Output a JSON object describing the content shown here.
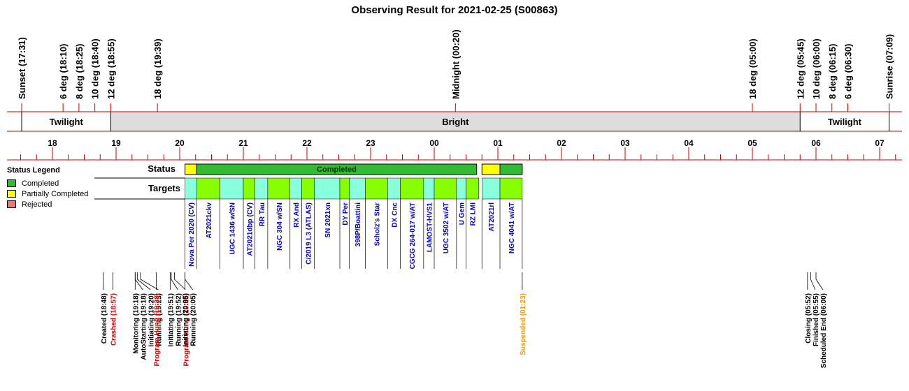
{
  "title": "Observing Result for 2021-02-25 (S00863)",
  "colors": {
    "completed": "#33bb33",
    "partial": "#ffff00",
    "rejected": "#ee7777",
    "twilight_band": "#ffffff",
    "bright_band": "#dddddd",
    "target_green": "#88ff00",
    "target_cyan": "#88ffdd",
    "target_label": "#0000cc",
    "line_red": "#cc0000",
    "event_black": "#000000",
    "event_red": "#dd0000",
    "event_orange": "#ff9900"
  },
  "legend": {
    "title": "Status Legend",
    "items": [
      {
        "label": "Completed",
        "color": "#33bb33"
      },
      {
        "label": "Partially Completed",
        "color": "#ffff00"
      },
      {
        "label": "Rejected",
        "color": "#ee7777"
      }
    ]
  },
  "row_labels": {
    "status": "Status",
    "targets": "Targets"
  },
  "timeline": {
    "start_hour": 17.5,
    "end_hour": 31.25,
    "hour_labels": [
      "18",
      "19",
      "20",
      "21",
      "22",
      "23",
      "00",
      "01",
      "02",
      "03",
      "04",
      "05",
      "06",
      "07"
    ],
    "sun_events": [
      {
        "label": "Sunset (17:31)",
        "time": "17:31"
      },
      {
        "label": "6 deg (18:10)",
        "time": "18:10"
      },
      {
        "label": "8 deg (18:25)",
        "time": "18:25"
      },
      {
        "label": "10 deg (18:40)",
        "time": "18:40"
      },
      {
        "label": "12 deg (18:55)",
        "time": "18:55"
      },
      {
        "label": "18 deg (19:39)",
        "time": "19:39"
      },
      {
        "label": "Midnight (00:20)",
        "time": "00:20"
      },
      {
        "label": "18 deg (05:00)",
        "time": "05:00"
      },
      {
        "label": "12 deg (05:45)",
        "time": "05:45"
      },
      {
        "label": "10 deg (06:00)",
        "time": "06:00"
      },
      {
        "label": "8 deg (06:15)",
        "time": "06:15"
      },
      {
        "label": "6 deg (06:30)",
        "time": "06:30"
      },
      {
        "label": "Sunrise (07:09)",
        "time": "07:09"
      }
    ],
    "bands": [
      {
        "label": "Twilight",
        "start": "17:31",
        "end": "18:55",
        "kind": "twilight"
      },
      {
        "label": "Bright",
        "start": "18:55",
        "end": "05:45",
        "kind": "bright"
      },
      {
        "label": "Twilight",
        "start": "05:45",
        "end": "07:09",
        "kind": "twilight"
      }
    ]
  },
  "status_segments": [
    {
      "start": "20:05",
      "end": "20:16",
      "status": "partial",
      "label": ""
    },
    {
      "start": "20:16",
      "end": "00:40",
      "status": "completed",
      "label": "Completed"
    },
    {
      "start": "00:40",
      "end": "00:45",
      "status": "blank",
      "label": ""
    },
    {
      "start": "00:45",
      "end": "01:02",
      "status": "partial",
      "label": ""
    },
    {
      "start": "01:02",
      "end": "01:23",
      "status": "completed",
      "label": ""
    }
  ],
  "targets": [
    {
      "name": "Nova Per 2020 (CV)",
      "start": "20:05",
      "end": "20:16",
      "color": "cyan"
    },
    {
      "name": "AT2021ckv",
      "start": "20:16",
      "end": "20:38",
      "color": "green"
    },
    {
      "name": "UGC 1436 w/SN",
      "start": "20:38",
      "end": "21:00",
      "color": "cyan"
    },
    {
      "name": "AT2021dbp (CV)",
      "start": "21:00",
      "end": "21:11",
      "color": "green"
    },
    {
      "name": "RR Tau",
      "start": "21:11",
      "end": "21:23",
      "color": "cyan"
    },
    {
      "name": "NGC 304 w/SN",
      "start": "21:23",
      "end": "21:44",
      "color": "green"
    },
    {
      "name": "RX And",
      "start": "21:44",
      "end": "21:55",
      "color": "cyan"
    },
    {
      "name": "C/2019 L3 (ATLAS)",
      "start": "21:55",
      "end": "22:07",
      "color": "green"
    },
    {
      "name": "SN 2021xn",
      "start": "22:07",
      "end": "22:31",
      "color": "cyan"
    },
    {
      "name": "DY Per",
      "start": "22:31",
      "end": "22:40",
      "color": "green"
    },
    {
      "name": "398P/Boattini",
      "start": "22:40",
      "end": "22:55",
      "color": "cyan"
    },
    {
      "name": "Scholz's Star",
      "start": "22:55",
      "end": "23:16",
      "color": "green"
    },
    {
      "name": "DX Cnc",
      "start": "23:16",
      "end": "23:28",
      "color": "cyan"
    },
    {
      "name": "CGCG 264-017 w/AT",
      "start": "23:28",
      "end": "23:50",
      "color": "green"
    },
    {
      "name": "LAMOST-HVS1",
      "start": "23:50",
      "end": "24:00",
      "color": "cyan"
    },
    {
      "name": "UGC 3502 w/AT",
      "start": "24:00",
      "end": "00:21",
      "color": "green"
    },
    {
      "name": "U Gem",
      "start": "00:21",
      "end": "00:30",
      "color": "cyan"
    },
    {
      "name": "RZ LMi",
      "start": "00:30",
      "end": "00:42",
      "color": "green"
    },
    {
      "name": "AT2021rl",
      "start": "00:45",
      "end": "01:02",
      "color": "cyan"
    },
    {
      "name": "NGC 4041 w/AT",
      "start": "01:02",
      "end": "01:23",
      "color": "green"
    }
  ],
  "events": [
    {
      "label": "Created (18:48)",
      "time": "18:48",
      "kind": "black"
    },
    {
      "label": "Crashed (18:57)",
      "time": "18:57",
      "kind": "red"
    },
    {
      "label": "Monitoring (19:18)",
      "time": "19:18",
      "kind": "black"
    },
    {
      "label": "AutoStarting (19:18)",
      "time": "19:18",
      "kind": "black"
    },
    {
      "label": "Initiating (19:20)",
      "time": "19:20",
      "kind": "black"
    },
    {
      "label": "Running (19:23)",
      "time": "19:23",
      "kind": "black"
    },
    {
      "label": "Program Hung (19:38)",
      "time": "19:38",
      "kind": "red"
    },
    {
      "label": "Initiating (19:51)",
      "time": "19:51",
      "kind": "black"
    },
    {
      "label": "Running (19:52)",
      "time": "19:52",
      "kind": "black"
    },
    {
      "label": "Program Hung (19:55)",
      "time": "19:55",
      "kind": "red"
    },
    {
      "label": "Initiating (20:05)",
      "time": "20:05",
      "kind": "black"
    },
    {
      "label": "Running (20:05)",
      "time": "20:05",
      "kind": "black"
    },
    {
      "label": "Suspended (01:23)",
      "time": "01:23",
      "kind": "orange"
    },
    {
      "label": "Closing (05:52)",
      "time": "05:52",
      "kind": "black"
    },
    {
      "label": "Finished (05:55)",
      "time": "05:55",
      "kind": "black"
    },
    {
      "label": "Scheduled End (06:00)",
      "time": "06:00",
      "kind": "black"
    }
  ]
}
